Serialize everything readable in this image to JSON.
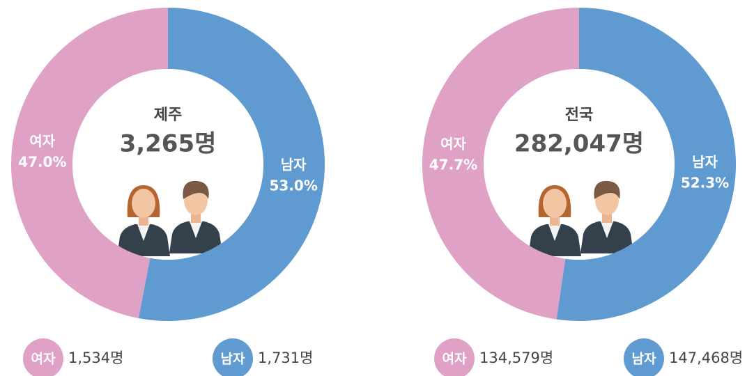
{
  "chart_data": [
    {
      "type": "pie",
      "title": "제주",
      "total": {
        "value": 3265,
        "label": "3,265명"
      },
      "categories": [
        "여자",
        "남자"
      ],
      "values": [
        47.0,
        53.0
      ],
      "value_labels": [
        "47.0%",
        "53.0%"
      ],
      "counts": [
        {
          "value": 1534,
          "label": "1,534명"
        },
        {
          "value": 1731,
          "label": "1,731명"
        }
      ],
      "colors": [
        "#e0a1c7",
        "#5f9ad0"
      ]
    },
    {
      "type": "pie",
      "title": "전국",
      "total": {
        "value": 282047,
        "label": "282,047명"
      },
      "categories": [
        "여자",
        "남자"
      ],
      "values": [
        47.7,
        52.3
      ],
      "value_labels": [
        "47.7%",
        "52.3%"
      ],
      "counts": [
        {
          "value": 134579,
          "label": "134,579명"
        },
        {
          "value": 147468,
          "label": "147,468명"
        }
      ],
      "colors": [
        "#e0a1c7",
        "#5f9ad0"
      ]
    }
  ]
}
